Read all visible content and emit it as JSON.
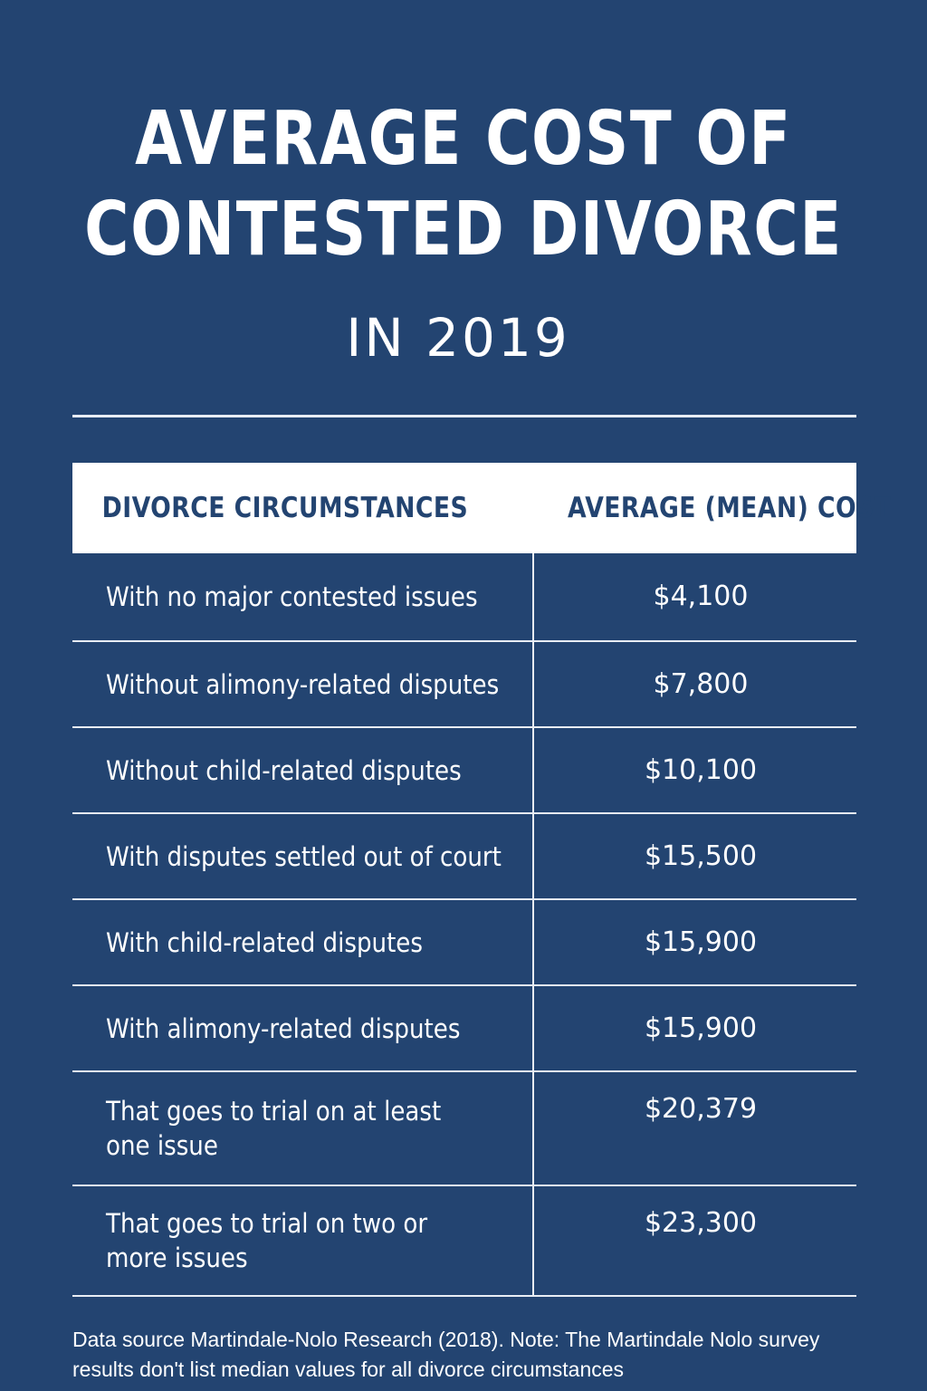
{
  "title_lines": [
    "AVERAGE COST OF",
    "CONTESTED DIVORCE"
  ],
  "subtitle": "IN 2019",
  "chart_data": {
    "type": "table",
    "title": "AVERAGE COST OF CONTESTED DIVORCE IN 2019",
    "columns": [
      "DIVORCE CIRCUMSTANCES",
      "AVERAGE (MEAN) COST"
    ],
    "rows": [
      {
        "circumstance": "With no major contested issues",
        "cost_label": "$4,100",
        "cost": 4100
      },
      {
        "circumstance": "Without alimony-related disputes",
        "cost_label": "$7,800",
        "cost": 7800
      },
      {
        "circumstance": "Without child-related disputes",
        "cost_label": "$10,100",
        "cost": 10100
      },
      {
        "circumstance": "With disputes settled out of court",
        "cost_label": "$15,500",
        "cost": 15500
      },
      {
        "circumstance": "With child-related disputes",
        "cost_label": "$15,900",
        "cost": 15900
      },
      {
        "circumstance": "With alimony-related disputes",
        "cost_label": "$15,900",
        "cost": 15900
      },
      {
        "circumstance_lines": [
          "That goes to trial on at least",
          "one issue"
        ],
        "cost_label": "$20,379",
        "cost": 20379
      },
      {
        "circumstance_lines": [
          "That goes to trial on two or",
          "more issues"
        ],
        "cost_label": "$23,300",
        "cost": 23300
      }
    ]
  },
  "footnote_lines": [
    "Data source  Martindale-Nolo Research (2018). Note: The Martindale Nolo survey",
    "results don't list median values for all divorce circumstances"
  ]
}
